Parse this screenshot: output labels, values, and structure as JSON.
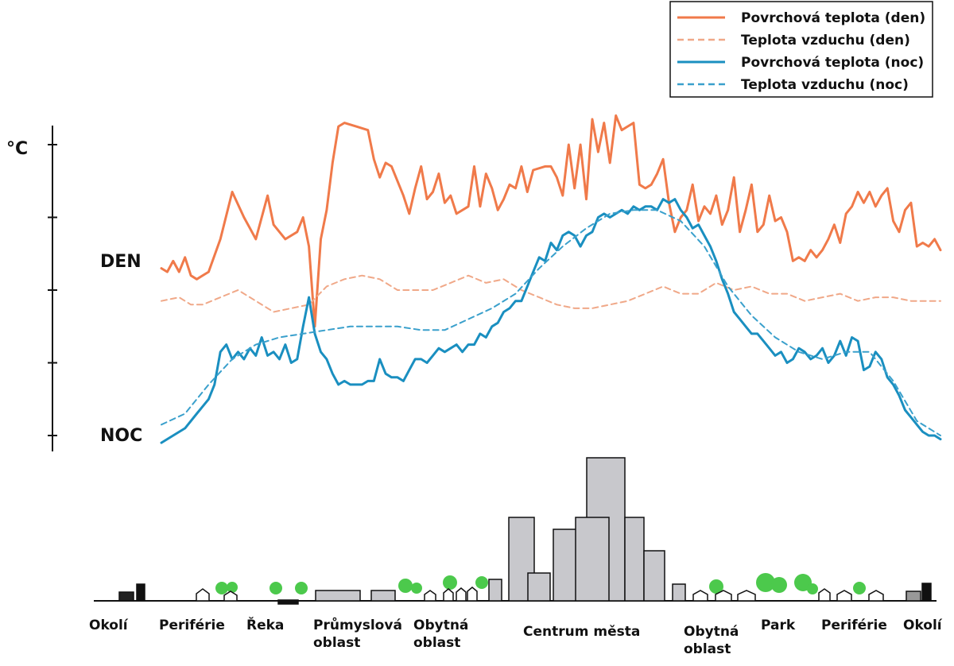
{
  "chart_data": {
    "type": "line",
    "title": "",
    "ylabel": "°C",
    "xlabel": "",
    "ylim": [
      0,
      10
    ],
    "grid": false,
    "legend_position": "top-right",
    "y_ticks": [
      0,
      2,
      4,
      6,
      8
    ],
    "labels": {
      "day": "DEN",
      "night": "NOC"
    },
    "x_categories": [
      "Okolí",
      "Periférie",
      "Řeka",
      "Průmyslová oblast",
      "Obytná oblast",
      "Centrum města",
      "Obytná oblast",
      "Park",
      "Periférie",
      "Okolí"
    ],
    "series": [
      {
        "name": "Povrchová teplota (den)",
        "color": "#f07a4a",
        "dash": false,
        "points": [
          [
            0,
            4.6
          ],
          [
            1,
            4.5
          ],
          [
            2,
            4.8
          ],
          [
            3,
            4.5
          ],
          [
            4,
            4.9
          ],
          [
            5,
            4.4
          ],
          [
            6,
            4.3
          ],
          [
            8,
            4.5
          ],
          [
            10,
            5.4
          ],
          [
            12,
            6.7
          ],
          [
            14,
            6.0
          ],
          [
            15,
            5.7
          ],
          [
            16,
            5.4
          ],
          [
            17,
            6.0
          ],
          [
            18,
            6.6
          ],
          [
            19,
            5.8
          ],
          [
            21,
            5.4
          ],
          [
            23,
            5.6
          ],
          [
            24,
            6.0
          ],
          [
            25,
            5.2
          ],
          [
            26,
            3.0
          ],
          [
            27,
            5.4
          ],
          [
            28,
            6.2
          ],
          [
            29,
            7.5
          ],
          [
            30,
            8.5
          ],
          [
            31,
            8.6
          ],
          [
            33,
            8.5
          ],
          [
            35,
            8.4
          ],
          [
            36,
            7.6
          ],
          [
            37,
            7.1
          ],
          [
            38,
            7.5
          ],
          [
            39,
            7.4
          ],
          [
            41,
            6.6
          ],
          [
            42,
            6.1
          ],
          [
            43,
            6.8
          ],
          [
            44,
            7.4
          ],
          [
            45,
            6.5
          ],
          [
            46,
            6.7
          ],
          [
            47,
            7.2
          ],
          [
            48,
            6.4
          ],
          [
            49,
            6.6
          ],
          [
            50,
            6.1
          ],
          [
            52,
            6.3
          ],
          [
            53,
            7.4
          ],
          [
            54,
            6.3
          ],
          [
            55,
            7.2
          ],
          [
            56,
            6.8
          ],
          [
            57,
            6.2
          ],
          [
            58,
            6.5
          ],
          [
            59,
            6.9
          ],
          [
            60,
            6.8
          ],
          [
            61,
            7.4
          ],
          [
            62,
            6.7
          ],
          [
            63,
            7.3
          ],
          [
            65,
            7.4
          ],
          [
            66,
            7.4
          ],
          [
            67,
            7.1
          ],
          [
            68,
            6.6
          ],
          [
            69,
            8.0
          ],
          [
            70,
            6.8
          ],
          [
            71,
            8.0
          ],
          [
            72,
            6.5
          ],
          [
            73,
            8.7
          ],
          [
            74,
            7.8
          ],
          [
            75,
            8.6
          ],
          [
            76,
            7.5
          ],
          [
            77,
            8.8
          ],
          [
            78,
            8.4
          ],
          [
            79,
            8.5
          ],
          [
            80,
            8.6
          ],
          [
            81,
            6.9
          ],
          [
            82,
            6.8
          ],
          [
            83,
            6.9
          ],
          [
            84,
            7.2
          ],
          [
            85,
            7.6
          ],
          [
            86,
            6.4
          ],
          [
            87,
            5.6
          ],
          [
            88,
            6.0
          ],
          [
            89,
            6.2
          ],
          [
            90,
            6.9
          ],
          [
            91,
            5.9
          ],
          [
            92,
            6.3
          ],
          [
            93,
            6.1
          ],
          [
            94,
            6.6
          ],
          [
            95,
            5.8
          ],
          [
            96,
            6.2
          ],
          [
            97,
            7.1
          ],
          [
            98,
            5.6
          ],
          [
            99,
            6.2
          ],
          [
            100,
            6.9
          ],
          [
            101,
            5.6
          ],
          [
            102,
            5.8
          ],
          [
            103,
            6.6
          ],
          [
            104,
            5.9
          ],
          [
            105,
            6.0
          ],
          [
            106,
            5.6
          ],
          [
            107,
            4.8
          ],
          [
            108,
            4.9
          ],
          [
            109,
            4.8
          ],
          [
            110,
            5.1
          ],
          [
            111,
            4.9
          ],
          [
            112,
            5.1
          ],
          [
            113,
            5.4
          ],
          [
            114,
            5.8
          ],
          [
            115,
            5.3
          ],
          [
            116,
            6.1
          ],
          [
            117,
            6.3
          ],
          [
            118,
            6.7
          ],
          [
            119,
            6.4
          ],
          [
            120,
            6.7
          ],
          [
            121,
            6.3
          ],
          [
            122,
            6.6
          ],
          [
            123,
            6.8
          ],
          [
            124,
            5.9
          ],
          [
            125,
            5.6
          ],
          [
            126,
            6.2
          ],
          [
            127,
            6.4
          ],
          [
            128,
            5.2
          ],
          [
            129,
            5.3
          ],
          [
            130,
            5.2
          ],
          [
            131,
            5.4
          ],
          [
            132,
            5.1
          ]
        ]
      },
      {
        "name": "Teplota vzduchu (den)",
        "color": "#f0a888",
        "dash": true,
        "points": [
          [
            0,
            3.7
          ],
          [
            3,
            3.8
          ],
          [
            5,
            3.6
          ],
          [
            7,
            3.6
          ],
          [
            10,
            3.8
          ],
          [
            13,
            4.0
          ],
          [
            16,
            3.7
          ],
          [
            19,
            3.4
          ],
          [
            22,
            3.5
          ],
          [
            25,
            3.6
          ],
          [
            28,
            4.1
          ],
          [
            31,
            4.3
          ],
          [
            34,
            4.4
          ],
          [
            37,
            4.3
          ],
          [
            40,
            4.0
          ],
          [
            43,
            4.0
          ],
          [
            46,
            4.0
          ],
          [
            49,
            4.2
          ],
          [
            52,
            4.4
          ],
          [
            55,
            4.2
          ],
          [
            58,
            4.3
          ],
          [
            61,
            4.0
          ],
          [
            64,
            3.8
          ],
          [
            67,
            3.6
          ],
          [
            70,
            3.5
          ],
          [
            73,
            3.5
          ],
          [
            76,
            3.6
          ],
          [
            79,
            3.7
          ],
          [
            82,
            3.9
          ],
          [
            85,
            4.1
          ],
          [
            88,
            3.9
          ],
          [
            91,
            3.9
          ],
          [
            94,
            4.2
          ],
          [
            97,
            4.0
          ],
          [
            100,
            4.1
          ],
          [
            103,
            3.9
          ],
          [
            106,
            3.9
          ],
          [
            109,
            3.7
          ],
          [
            112,
            3.8
          ],
          [
            115,
            3.9
          ],
          [
            118,
            3.7
          ],
          [
            121,
            3.8
          ],
          [
            124,
            3.8
          ],
          [
            127,
            3.7
          ],
          [
            130,
            3.7
          ],
          [
            132,
            3.7
          ]
        ]
      },
      {
        "name": "Povrchová teplota (noc)",
        "color": "#1a8fc0",
        "dash": false,
        "points": [
          [
            0,
            -0.2
          ],
          [
            2,
            0.0
          ],
          [
            4,
            0.2
          ],
          [
            6,
            0.6
          ],
          [
            8,
            1.0
          ],
          [
            9,
            1.4
          ],
          [
            10,
            2.3
          ],
          [
            11,
            2.5
          ],
          [
            12,
            2.1
          ],
          [
            13,
            2.3
          ],
          [
            14,
            2.1
          ],
          [
            15,
            2.4
          ],
          [
            16,
            2.2
          ],
          [
            17,
            2.7
          ],
          [
            18,
            2.2
          ],
          [
            19,
            2.3
          ],
          [
            20,
            2.1
          ],
          [
            21,
            2.5
          ],
          [
            22,
            2.0
          ],
          [
            23,
            2.1
          ],
          [
            24,
            3.0
          ],
          [
            25,
            3.8
          ],
          [
            26,
            2.8
          ],
          [
            27,
            2.3
          ],
          [
            28,
            2.1
          ],
          [
            29,
            1.7
          ],
          [
            30,
            1.4
          ],
          [
            31,
            1.5
          ],
          [
            32,
            1.4
          ],
          [
            34,
            1.4
          ],
          [
            35,
            1.5
          ],
          [
            36,
            1.5
          ],
          [
            37,
            2.1
          ],
          [
            38,
            1.7
          ],
          [
            39,
            1.6
          ],
          [
            40,
            1.6
          ],
          [
            41,
            1.5
          ],
          [
            42,
            1.8
          ],
          [
            43,
            2.1
          ],
          [
            44,
            2.1
          ],
          [
            45,
            2.0
          ],
          [
            46,
            2.2
          ],
          [
            47,
            2.4
          ],
          [
            48,
            2.3
          ],
          [
            49,
            2.4
          ],
          [
            50,
            2.5
          ],
          [
            51,
            2.3
          ],
          [
            52,
            2.5
          ],
          [
            53,
            2.5
          ],
          [
            54,
            2.8
          ],
          [
            55,
            2.7
          ],
          [
            56,
            3.0
          ],
          [
            57,
            3.1
          ],
          [
            58,
            3.4
          ],
          [
            59,
            3.5
          ],
          [
            60,
            3.7
          ],
          [
            61,
            3.7
          ],
          [
            62,
            4.1
          ],
          [
            63,
            4.5
          ],
          [
            64,
            4.9
          ],
          [
            65,
            4.8
          ],
          [
            66,
            5.3
          ],
          [
            67,
            5.1
          ],
          [
            68,
            5.5
          ],
          [
            69,
            5.6
          ],
          [
            70,
            5.5
          ],
          [
            71,
            5.2
          ],
          [
            72,
            5.5
          ],
          [
            73,
            5.6
          ],
          [
            74,
            6.0
          ],
          [
            75,
            6.1
          ],
          [
            76,
            6.0
          ],
          [
            77,
            6.1
          ],
          [
            78,
            6.2
          ],
          [
            79,
            6.1
          ],
          [
            80,
            6.3
          ],
          [
            81,
            6.2
          ],
          [
            82,
            6.3
          ],
          [
            83,
            6.3
          ],
          [
            84,
            6.2
          ],
          [
            85,
            6.5
          ],
          [
            86,
            6.4
          ],
          [
            87,
            6.5
          ],
          [
            88,
            6.2
          ],
          [
            89,
            6.0
          ],
          [
            90,
            5.7
          ],
          [
            91,
            5.8
          ],
          [
            92,
            5.5
          ],
          [
            93,
            5.2
          ],
          [
            94,
            4.8
          ],
          [
            95,
            4.3
          ],
          [
            96,
            3.9
          ],
          [
            97,
            3.4
          ],
          [
            98,
            3.2
          ],
          [
            99,
            3.0
          ],
          [
            100,
            2.8
          ],
          [
            101,
            2.8
          ],
          [
            102,
            2.6
          ],
          [
            103,
            2.4
          ],
          [
            104,
            2.2
          ],
          [
            105,
            2.3
          ],
          [
            106,
            2.0
          ],
          [
            107,
            2.1
          ],
          [
            108,
            2.4
          ],
          [
            109,
            2.3
          ],
          [
            110,
            2.1
          ],
          [
            111,
            2.2
          ],
          [
            112,
            2.4
          ],
          [
            113,
            2.0
          ],
          [
            114,
            2.2
          ],
          [
            115,
            2.6
          ],
          [
            116,
            2.2
          ],
          [
            117,
            2.7
          ],
          [
            118,
            2.6
          ],
          [
            119,
            1.8
          ],
          [
            120,
            1.9
          ],
          [
            121,
            2.3
          ],
          [
            122,
            2.1
          ],
          [
            123,
            1.6
          ],
          [
            124,
            1.4
          ],
          [
            125,
            1.1
          ],
          [
            126,
            0.7
          ],
          [
            127,
            0.5
          ],
          [
            128,
            0.3
          ],
          [
            129,
            0.1
          ],
          [
            130,
            0.0
          ],
          [
            131,
            0.0
          ],
          [
            132,
            -0.1
          ]
        ]
      },
      {
        "name": "Teplota vzduchu (noc)",
        "color": "#3aa0cc",
        "dash": true,
        "points": [
          [
            0,
            0.3
          ],
          [
            4,
            0.6
          ],
          [
            8,
            1.4
          ],
          [
            12,
            2.1
          ],
          [
            16,
            2.5
          ],
          [
            20,
            2.7
          ],
          [
            24,
            2.8
          ],
          [
            28,
            2.9
          ],
          [
            32,
            3.0
          ],
          [
            36,
            3.0
          ],
          [
            40,
            3.0
          ],
          [
            44,
            2.9
          ],
          [
            48,
            2.9
          ],
          [
            52,
            3.2
          ],
          [
            56,
            3.5
          ],
          [
            60,
            3.9
          ],
          [
            64,
            4.6
          ],
          [
            68,
            5.2
          ],
          [
            72,
            5.7
          ],
          [
            76,
            6.1
          ],
          [
            80,
            6.2
          ],
          [
            84,
            6.2
          ],
          [
            88,
            5.9
          ],
          [
            92,
            5.2
          ],
          [
            96,
            4.1
          ],
          [
            100,
            3.3
          ],
          [
            104,
            2.7
          ],
          [
            108,
            2.3
          ],
          [
            112,
            2.1
          ],
          [
            116,
            2.3
          ],
          [
            120,
            2.3
          ],
          [
            124,
            1.5
          ],
          [
            128,
            0.4
          ],
          [
            132,
            0.0
          ]
        ]
      }
    ]
  }
}
